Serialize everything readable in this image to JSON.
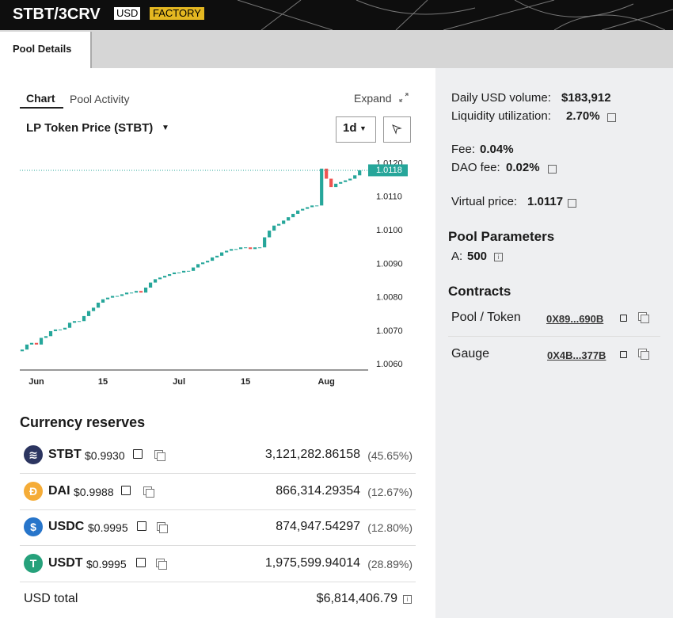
{
  "header": {
    "title": "STBT/3CRV",
    "badges": [
      "USD",
      "FACTORY"
    ]
  },
  "tabs": [
    "Pool Details"
  ],
  "chart_tabs": [
    "Chart",
    "Pool Activity"
  ],
  "expand": "Expand",
  "selector": "LP Token Price (STBT)",
  "interval": "1d",
  "chart_data": {
    "type": "candlestick",
    "open": [
      1.0064,
      1.00645,
      1.0066,
      1.00665,
      1.0066,
      1.0068,
      1.00685,
      1.007,
      1.00705,
      1.00705,
      1.0071,
      1.00725,
      1.0073,
      1.0073,
      1.00745,
      1.0076,
      1.0077,
      1.00785,
      1.00795,
      1.008,
      1.00805,
      1.00805,
      1.0081,
      1.00815,
      1.00815,
      1.0082,
      1.00815,
      1.0083,
      1.00845,
      1.00855,
      1.0086,
      1.00865,
      1.0087,
      1.00875,
      1.00875,
      1.0088,
      1.0088,
      1.0089,
      1.009,
      1.00905,
      1.0091,
      1.0092,
      1.00925,
      1.00935,
      1.0094,
      1.00945,
      1.00945,
      1.0095,
      1.0095,
      1.00945,
      1.0095,
      1.0095,
      1.0098,
      1.01,
      1.01015,
      1.0102,
      1.0103,
      1.0104,
      1.0105,
      1.0106,
      1.01065,
      1.0107,
      1.01075,
      1.01075,
      1.01185,
      1.01155,
      1.0113,
      1.0114,
      1.01145,
      1.0115,
      1.01155,
      1.01165
    ],
    "close": [
      1.00645,
      1.0066,
      1.00665,
      1.0066,
      1.0068,
      1.00685,
      1.007,
      1.00705,
      1.00705,
      1.0071,
      1.00725,
      1.0073,
      1.0073,
      1.00745,
      1.0076,
      1.0077,
      1.00785,
      1.00795,
      1.008,
      1.00805,
      1.00805,
      1.0081,
      1.00815,
      1.00815,
      1.0082,
      1.00815,
      1.0083,
      1.00845,
      1.00855,
      1.0086,
      1.00865,
      1.0087,
      1.00875,
      1.00875,
      1.0088,
      1.0088,
      1.0089,
      1.009,
      1.00905,
      1.0091,
      1.0092,
      1.00925,
      1.00935,
      1.0094,
      1.00945,
      1.00945,
      1.0095,
      1.0095,
      1.00945,
      1.0095,
      1.0095,
      1.0098,
      1.01,
      1.01015,
      1.0102,
      1.0103,
      1.0104,
      1.0105,
      1.0106,
      1.01065,
      1.0107,
      1.01075,
      1.01075,
      1.01185,
      1.01155,
      1.0113,
      1.0114,
      1.01145,
      1.0115,
      1.01155,
      1.01165,
      1.0118
    ],
    "up_color": "#26a69a",
    "down_color": "#ef5350",
    "last_price": 1.0118,
    "xlim": [
      -0.5,
      72.8
    ],
    "xticks": [
      {
        "value": 3,
        "label": "Jun"
      },
      {
        "value": 17,
        "label": "15"
      },
      {
        "value": 33,
        "label": "Jul"
      },
      {
        "value": 47,
        "label": "15"
      },
      {
        "value": 64,
        "label": "Aug"
      }
    ],
    "ylim": [
      1.00584,
      1.01239
    ],
    "yticks": [
      {
        "value": 1.006,
        "label": "1.0060"
      },
      {
        "value": 1.007,
        "label": "1.0070"
      },
      {
        "value": 1.008,
        "label": "1.0080"
      },
      {
        "value": 1.009,
        "label": "1.0090"
      },
      {
        "value": 1.01,
        "label": "1.0100"
      },
      {
        "value": 1.011,
        "label": "1.0110"
      },
      {
        "value": 1.012,
        "label": "1.0120"
      }
    ]
  },
  "reserves": {
    "title": "Currency reserves",
    "rows": [
      {
        "symbol": "STBT",
        "price": "$0.9930",
        "amount": "3,121,282.86158",
        "share": "(45.65%)"
      },
      {
        "symbol": "DAI",
        "price": "$0.9988",
        "amount": "866,314.29354",
        "share": "(12.67%)"
      },
      {
        "symbol": "USDC",
        "price": "$0.9995",
        "amount": "874,947.54297",
        "share": "(12.80%)"
      },
      {
        "symbol": "USDT",
        "price": "$0.9995",
        "amount": "1,975,599.94014",
        "share": "(28.89%)"
      }
    ],
    "total_label": "USD total",
    "total": "$6,814,406.79"
  },
  "stats": [
    {
      "label": "Daily USD volume:",
      "value": "$183,912"
    },
    {
      "label": "Liquidity utilization:",
      "value": "2.70%"
    },
    {
      "label": "Fee:",
      "value": "0.04%"
    },
    {
      "label": "DAO fee:",
      "value": "0.02%"
    },
    {
      "label": "Virtual price:",
      "value": "1.0117"
    }
  ],
  "parameters": {
    "title": "Pool Parameters",
    "label": "A:",
    "value": "500"
  },
  "contracts": {
    "title": "Contracts",
    "rows": [
      {
        "label": "Pool / Token",
        "address": "0X89...690B"
      },
      {
        "label": "Gauge",
        "address": "0X4B...377B"
      }
    ]
  }
}
